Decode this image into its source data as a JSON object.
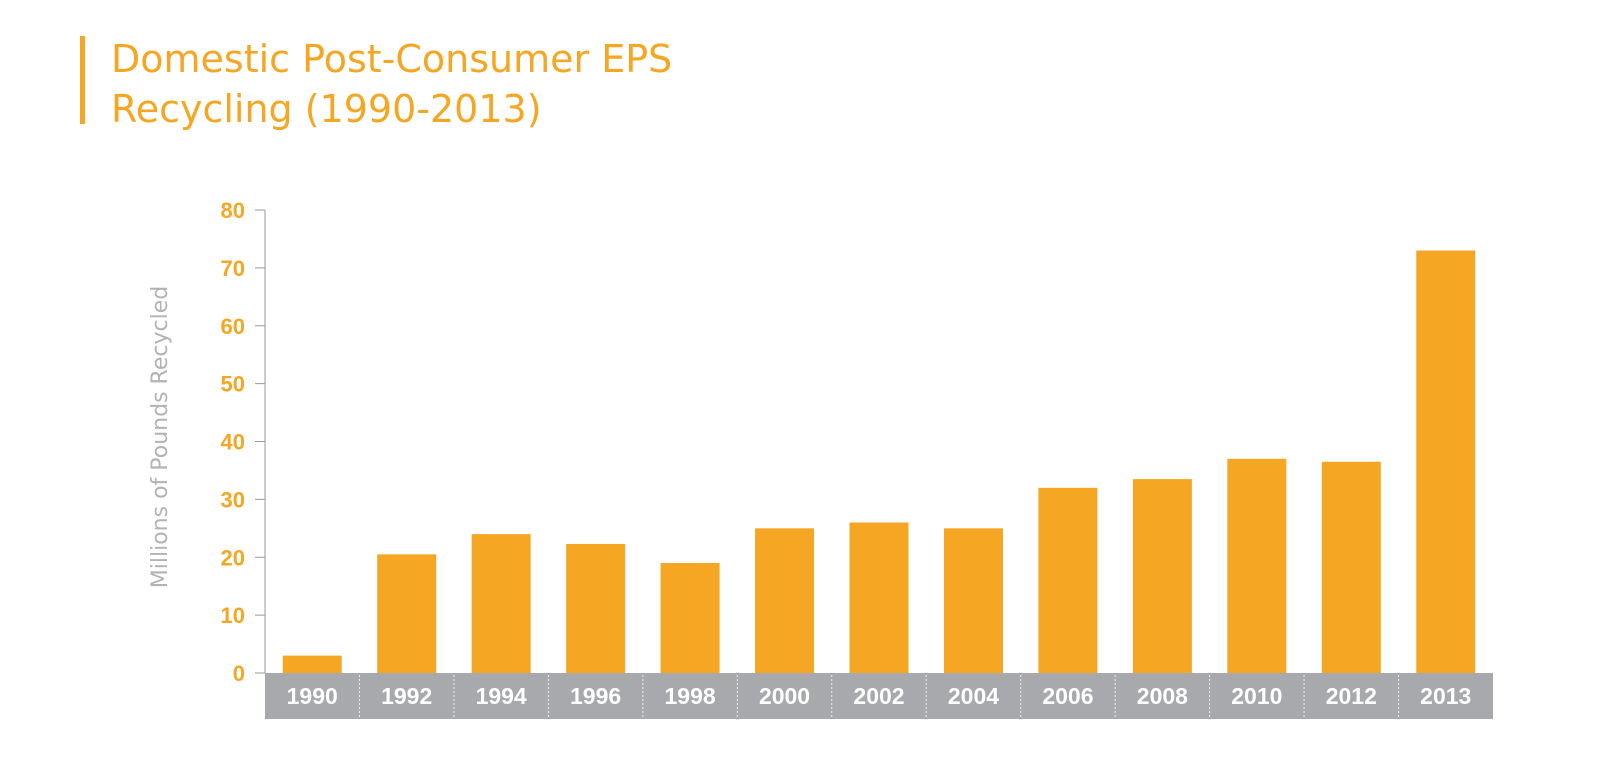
{
  "chart_data": {
    "type": "bar",
    "title": "Domestic Post-Consumer EPS\nRecycling (1990-2013)",
    "xlabel": "",
    "ylabel": "Millions of Pounds Recycled",
    "categories": [
      "1990",
      "1992",
      "1994",
      "1996",
      "1998",
      "2000",
      "2002",
      "2004",
      "2006",
      "2008",
      "2010",
      "2012",
      "2013"
    ],
    "values": [
      3,
      20.5,
      24,
      22.3,
      19,
      25,
      26,
      25,
      32,
      33.5,
      37,
      36.5,
      73
    ],
    "ylim": [
      0,
      80
    ],
    "yticks": [
      0,
      10,
      20,
      30,
      40,
      50,
      60,
      70,
      80
    ],
    "grid": false,
    "legend": "none",
    "colors": {
      "bar": "#F5A623",
      "title": "#F5A623",
      "tick_labels": "#F5A623",
      "category_band": "#A7A9AC",
      "category_text": "#FFFFFF",
      "axis_label": "#B3B3B3",
      "axis_line": "#999999"
    }
  }
}
